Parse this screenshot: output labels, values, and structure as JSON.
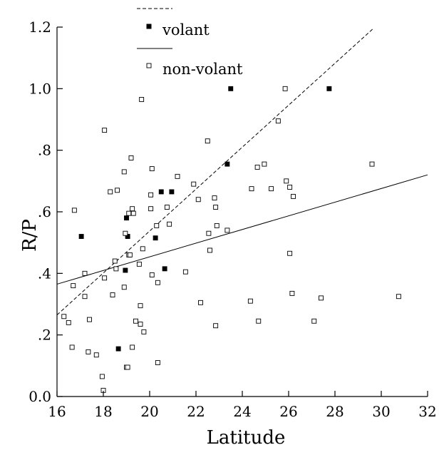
{
  "chart_data": {
    "type": "scatter",
    "xlabel": "Latitude",
    "ylabel": "R/P",
    "xlim": [
      16,
      32
    ],
    "ylim": [
      0,
      1.2
    ],
    "x_ticks": [
      16,
      18,
      20,
      22,
      24,
      26,
      28,
      30,
      32
    ],
    "x_tick_labels": [
      "16",
      "18",
      "20",
      "22",
      "24",
      "26",
      "28",
      "30",
      "32"
    ],
    "y_ticks": [
      0,
      0.2,
      0.4,
      0.6,
      0.8,
      1.0,
      1.2
    ],
    "y_tick_labels": [
      "0.0",
      ".2",
      ".4",
      ".6",
      ".8",
      "1.0",
      "1.2"
    ],
    "legend_position": "top-center",
    "series": [
      {
        "name": "volant",
        "marker": "filled-square",
        "color": "#000000",
        "points": [
          [
            17.05,
            0.52
          ],
          [
            18.65,
            0.155
          ],
          [
            18.95,
            0.41
          ],
          [
            19.05,
            0.52
          ],
          [
            20.25,
            0.515
          ],
          [
            20.5,
            0.665
          ],
          [
            20.65,
            0.415
          ],
          [
            20.95,
            0.665
          ],
          [
            23.35,
            0.755
          ],
          [
            23.5,
            1.0
          ],
          [
            27.75,
            1.0
          ],
          [
            19.0,
            0.58
          ]
        ]
      },
      {
        "name": "non-volant",
        "marker": "open-square",
        "color": "#000000",
        "points": [
          [
            16.3,
            0.26
          ],
          [
            16.5,
            0.24
          ],
          [
            16.65,
            0.16
          ],
          [
            16.7,
            0.36
          ],
          [
            16.75,
            0.605
          ],
          [
            17.2,
            0.4
          ],
          [
            17.2,
            0.325
          ],
          [
            17.35,
            0.145
          ],
          [
            17.4,
            0.25
          ],
          [
            17.7,
            0.135
          ],
          [
            17.95,
            0.065
          ],
          [
            18.0,
            0.02
          ],
          [
            18.05,
            0.865
          ],
          [
            18.05,
            0.385
          ],
          [
            18.3,
            0.665
          ],
          [
            18.4,
            0.33
          ],
          [
            18.5,
            0.44
          ],
          [
            18.55,
            0.415
          ],
          [
            18.6,
            0.67
          ],
          [
            18.9,
            0.73
          ],
          [
            18.9,
            0.355
          ],
          [
            18.95,
            0.53
          ],
          [
            19.0,
            0.095
          ],
          [
            19.05,
            0.095
          ],
          [
            19.1,
            0.595
          ],
          [
            19.1,
            0.46
          ],
          [
            19.15,
            0.46
          ],
          [
            19.2,
            0.775
          ],
          [
            19.25,
            0.61
          ],
          [
            19.25,
            0.16
          ],
          [
            19.3,
            0.595
          ],
          [
            19.4,
            0.245
          ],
          [
            19.55,
            0.43
          ],
          [
            19.6,
            0.295
          ],
          [
            19.6,
            0.235
          ],
          [
            19.65,
            0.965
          ],
          [
            19.7,
            0.48
          ],
          [
            19.75,
            0.21
          ],
          [
            20.05,
            0.61
          ],
          [
            20.05,
            0.655
          ],
          [
            20.1,
            0.74
          ],
          [
            20.1,
            0.395
          ],
          [
            20.3,
            0.555
          ],
          [
            20.35,
            0.37
          ],
          [
            20.35,
            0.11
          ],
          [
            20.75,
            0.615
          ],
          [
            20.85,
            0.56
          ],
          [
            21.2,
            0.715
          ],
          [
            21.55,
            0.405
          ],
          [
            21.9,
            0.69
          ],
          [
            22.1,
            0.64
          ],
          [
            22.2,
            0.305
          ],
          [
            22.5,
            0.83
          ],
          [
            22.55,
            0.53
          ],
          [
            22.6,
            0.475
          ],
          [
            22.8,
            0.645
          ],
          [
            22.85,
            0.615
          ],
          [
            22.85,
            0.23
          ],
          [
            22.9,
            0.555
          ],
          [
            23.35,
            0.54
          ],
          [
            24.35,
            0.31
          ],
          [
            24.4,
            0.675
          ],
          [
            24.65,
            0.745
          ],
          [
            24.7,
            0.245
          ],
          [
            24.95,
            0.755
          ],
          [
            25.25,
            0.675
          ],
          [
            25.55,
            0.895
          ],
          [
            25.85,
            1.0
          ],
          [
            25.9,
            0.7
          ],
          [
            26.05,
            0.68
          ],
          [
            26.05,
            0.465
          ],
          [
            26.15,
            0.335
          ],
          [
            26.2,
            0.65
          ],
          [
            27.1,
            0.245
          ],
          [
            27.4,
            0.32
          ],
          [
            29.6,
            0.755
          ],
          [
            30.75,
            0.325
          ]
        ]
      }
    ],
    "trend_lines": [
      {
        "name": "volant",
        "style": "dashed",
        "from": [
          16,
          0.265
        ],
        "to": [
          29.65,
          1.195
        ]
      },
      {
        "name": "non-volant",
        "style": "solid",
        "from": [
          16,
          0.365
        ],
        "to": [
          32,
          0.72
        ]
      }
    ]
  }
}
